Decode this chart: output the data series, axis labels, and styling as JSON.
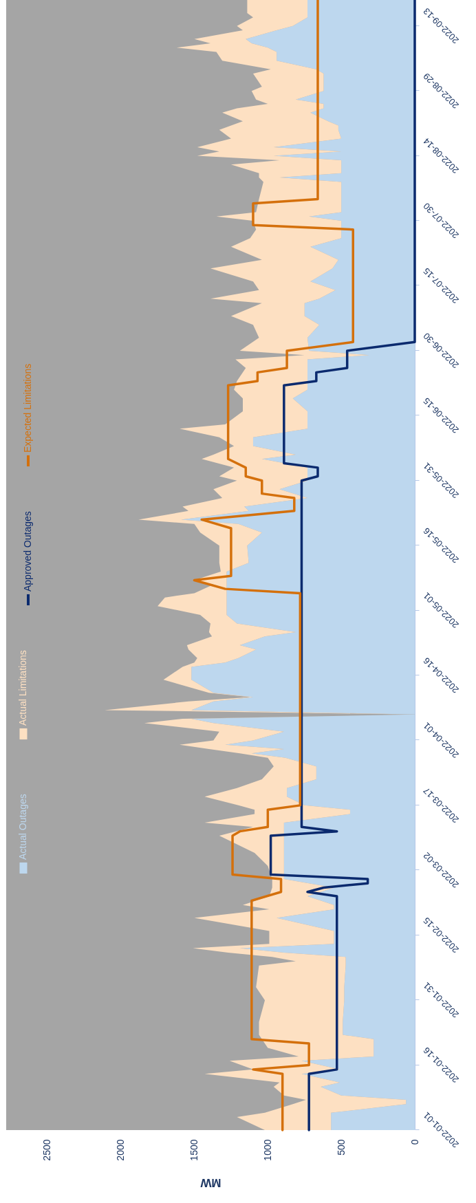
{
  "chart_data": {
    "type": "area",
    "stacked": true,
    "orientation": "horizontal",
    "xlabel": "MW",
    "legend": "left",
    "ylim": [
      "2022-01-01",
      "2022-09-19"
    ],
    "xlim": [
      2780,
      0
    ],
    "yticks": [
      "2022-01-01",
      "2022-01-16",
      "2022-01-31",
      "2022-02-15",
      "2022-03-02",
      "2022-03-17",
      "2022-04-01",
      "2022-04-16",
      "2022-05-01",
      "2022-05-16",
      "2022-05-31",
      "2022-06-15",
      "2022-06-30",
      "2022-07-15",
      "2022-07-30",
      "2022-08-14",
      "2022-08-29",
      "2022-09-13"
    ],
    "xticks": [
      2500,
      2000,
      1500,
      1000,
      500,
      0
    ],
    "x": [
      "2022-01-01",
      "2022-01-04",
      "2022-01-05",
      "2022-01-07",
      "2022-01-08",
      "2022-01-09",
      "2022-01-11",
      "2022-01-12",
      "2022-01-14",
      "2022-01-15",
      "2022-01-17",
      "2022-01-18",
      "2022-01-20",
      "2022-01-22",
      "2022-01-23",
      "2022-01-26",
      "2022-01-31",
      "2022-02-03",
      "2022-02-08",
      "2022-02-09",
      "2022-02-10",
      "2022-02-11",
      "2022-02-12",
      "2022-02-13",
      "2022-02-16",
      "2022-02-19",
      "2022-02-21",
      "2022-02-22",
      "2022-02-24",
      "2022-02-26",
      "2022-02-28",
      "2022-03-03",
      "2022-03-06",
      "2022-03-10",
      "2022-03-12",
      "2022-03-13",
      "2022-03-15",
      "2022-03-16",
      "2022-03-17",
      "2022-03-19",
      "2022-03-21",
      "2022-03-23",
      "2022-03-26",
      "2022-03-28",
      "2022-03-29",
      "2022-03-30",
      "2022-03-31",
      "2022-04-01",
      "2022-04-03",
      "2022-04-05",
      "2022-04-06",
      "2022-04-07",
      "2022-04-08",
      "2022-04-10",
      "2022-04-11",
      "2022-04-12",
      "2022-04-15",
      "2022-04-18",
      "2022-04-19",
      "2022-04-20",
      "2022-04-22",
      "2022-04-23",
      "2022-04-25",
      "2022-04-26",
      "2022-04-28",
      "2022-04-30",
      "2022-05-02",
      "2022-05-04",
      "2022-05-05",
      "2022-05-07",
      "2022-05-08",
      "2022-05-10",
      "2022-05-12",
      "2022-05-16",
      "2022-05-19",
      "2022-05-21",
      "2022-05-22",
      "2022-05-24",
      "2022-05-25",
      "2022-05-27",
      "2022-05-29",
      "2022-05-31",
      "2022-06-01",
      "2022-06-03",
      "2022-06-05",
      "2022-06-06",
      "2022-06-08",
      "2022-06-10",
      "2022-06-12",
      "2022-06-13",
      "2022-06-16",
      "2022-06-19",
      "2022-06-21",
      "2022-06-23",
      "2022-06-26",
      "2022-06-28",
      "2022-06-29",
      "2022-06-30",
      "2022-07-03",
      "2022-07-06",
      "2022-07-08",
      "2022-07-11",
      "2022-07-12",
      "2022-07-14",
      "2022-07-16",
      "2022-07-19",
      "2022-07-21",
      "2022-07-24",
      "2022-07-26",
      "2022-07-28",
      "2022-07-30",
      "2022-07-31",
      "2022-08-01",
      "2022-08-04",
      "2022-08-08",
      "2022-08-09",
      "2022-08-10",
      "2022-08-12",
      "2022-08-13",
      "2022-08-14",
      "2022-08-15",
      "2022-08-16",
      "2022-08-18",
      "2022-08-20",
      "2022-08-21",
      "2022-08-22",
      "2022-08-24",
      "2022-08-25",
      "2022-08-26",
      "2022-08-27",
      "2022-08-29",
      "2022-08-30",
      "2022-09-02",
      "2022-09-03",
      "2022-09-05",
      "2022-09-07",
      "2022-09-08",
      "2022-09-09",
      "2022-09-10",
      "2022-09-12",
      "2022-09-13",
      "2022-09-15",
      "2022-09-16",
      "2022-09-19"
    ],
    "series": [
      {
        "name": "Actual Outages",
        "color": "#bdd7ee",
        "values": [
          570,
          570,
          570,
          60,
          60,
          500,
          640,
          510,
          770,
          510,
          770,
          280,
          280,
          280,
          490,
          490,
          480,
          480,
          470,
          470,
          470,
          890,
          1190,
          550,
          550,
          940,
          550,
          550,
          730,
          550,
          890,
          890,
          890,
          890,
          890,
          890,
          440,
          440,
          750,
          870,
          870,
          670,
          670,
          880,
          1110,
          890,
          1290,
          1100,
          890,
          1370,
          1520,
          0,
          1520,
          1370,
          1100,
          1370,
          1520,
          1520,
          1290,
          1200,
          1080,
          1190,
          1020,
          810,
          1210,
          1280,
          1280,
          1280,
          1280,
          1280,
          1280,
          1280,
          1130,
          1140,
          1040,
          1200,
          1590,
          1130,
          1160,
          730,
          920,
          730,
          730,
          730,
          1040,
          810,
          1100,
          1100,
          730,
          730,
          730,
          830,
          730,
          730,
          730,
          730,
          310,
          720,
          730,
          650,
          750,
          750,
          650,
          540,
          710,
          560,
          520,
          710,
          500,
          500,
          500,
          720,
          500,
          500,
          500,
          920,
          500,
          500,
          500,
          960,
          500,
          960,
          500,
          520,
          520,
          590,
          710,
          620,
          620,
          810,
          620,
          620,
          620,
          670,
          940,
          940,
          1000,
          1110,
          1150,
          940,
          830,
          730,
          730,
          730
        ]
      },
      {
        "name": "Actual Limitations",
        "color": "#fde0c2",
        "values": [
          450,
          640,
          450,
          770,
          680,
          390,
          320,
          410,
          660,
          590,
          490,
          510,
          720,
          760,
          570,
          570,
          540,
          600,
          590,
          340,
          500,
          380,
          320,
          440,
          440,
          560,
          440,
          620,
          260,
          420,
          80,
          110,
          200,
          440,
          210,
          540,
          650,
          650,
          450,
          560,
          340,
          370,
          290,
          120,
          80,
          510,
          310,
          270,
          440,
          470,
          60,
          0,
          590,
          170,
          20,
          30,
          190,
          60,
          210,
          280,
          460,
          360,
          360,
          590,
          180,
          180,
          470,
          420,
          220,
          90,
          220,
          40,
          200,
          190,
          420,
          300,
          290,
          410,
          420,
          580,
          450,
          480,
          600,
          500,
          410,
          560,
          130,
          230,
          870,
          560,
          440,
          340,
          500,
          480,
          420,
          490,
          440,
          470,
          330,
          450,
          500,
          290,
          740,
          520,
          390,
          830,
          520,
          540,
          620,
          580,
          600,
          630,
          580,
          560,
          530,
          140,
          560,
          750,
          420,
          520,
          830,
          520,
          750,
          810,
          730,
          580,
          600,
          590,
          380,
          270,
          490,
          420,
          480,
          310,
          370,
          410,
          620,
          280,
          350,
          230,
          380,
          370,
          410,
          410
        ]
      },
      {
        "name": "Approved Outages",
        "type": "line",
        "color": "#0b2a6e",
        "x": [
          "2022-01-01",
          "2022-01-14",
          "2022-01-15",
          "2022-02-24",
          "2022-02-25",
          "2022-02-26",
          "2022-02-27",
          "2022-02-28",
          "2022-03-01",
          "2022-03-10",
          "2022-03-11",
          "2022-03-12",
          "2022-05-31",
          "2022-06-01",
          "2022-06-03",
          "2022-06-04",
          "2022-06-22",
          "2022-06-23",
          "2022-06-25",
          "2022-06-26",
          "2022-06-30",
          "2022-07-02",
          "2022-09-19"
        ],
        "values": [
          720,
          720,
          530,
          530,
          730,
          620,
          320,
          320,
          980,
          980,
          530,
          770,
          770,
          660,
          660,
          890,
          890,
          670,
          670,
          460,
          460,
          0,
          0
        ]
      },
      {
        "name": "Expected Limitations",
        "type": "line",
        "color": "#d4700c",
        "x": [
          "2022-01-01",
          "2022-01-14",
          "2022-01-15",
          "2022-01-16",
          "2022-01-21",
          "2022-01-22",
          "2022-02-23",
          "2022-02-25",
          "2022-02-28",
          "2022-03-01",
          "2022-03-10",
          "2022-03-11",
          "2022-03-12",
          "2022-03-16",
          "2022-03-17",
          "2022-05-05",
          "2022-05-06",
          "2022-05-08",
          "2022-05-09",
          "2022-05-20",
          "2022-05-22",
          "2022-05-24",
          "2022-05-27",
          "2022-05-28",
          "2022-05-31",
          "2022-06-01",
          "2022-06-03",
          "2022-06-05",
          "2022-06-22",
          "2022-06-23",
          "2022-06-25",
          "2022-06-26",
          "2022-06-30",
          "2022-07-02",
          "2022-07-28",
          "2022-07-29",
          "2022-08-03",
          "2022-08-04",
          "2022-09-19"
        ],
        "values": [
          900,
          900,
          1100,
          720,
          720,
          1110,
          1110,
          910,
          910,
          1240,
          1240,
          1190,
          1000,
          1000,
          780,
          780,
          1290,
          1500,
          1250,
          1250,
          1450,
          820,
          820,
          1040,
          1040,
          1150,
          1150,
          1270,
          1270,
          1070,
          1070,
          870,
          870,
          420,
          420,
          1100,
          1100,
          660,
          660
        ]
      }
    ]
  }
}
